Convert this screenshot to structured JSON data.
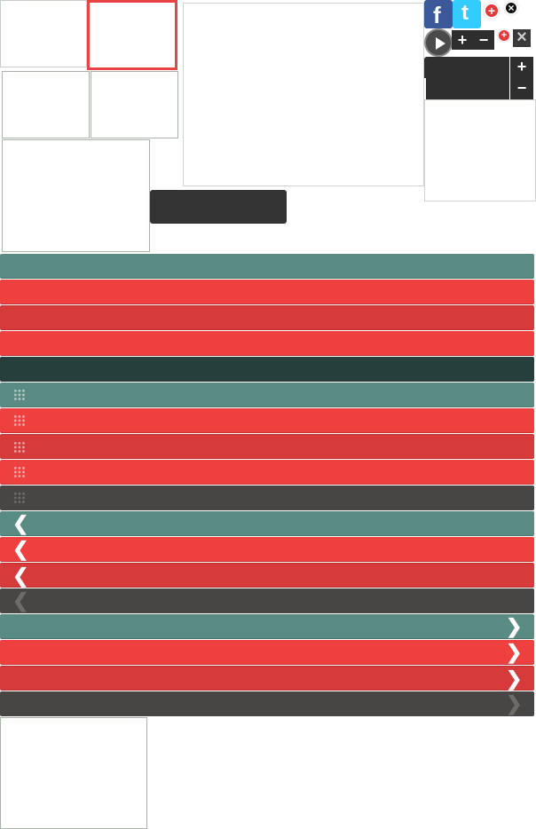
{
  "social": {
    "facebook_icon": "facebook-icon",
    "twitter_icon": "twitter-icon",
    "facebook_glyph": "f",
    "twitter_glyph": "t"
  },
  "controls": {
    "plus": "+",
    "minus": "−",
    "close": "×",
    "add": "+"
  },
  "colors": {
    "teal": "#5a8b82",
    "red": "#ef4040",
    "dark_red": "#d63a3a",
    "dark_green": "#263f3c",
    "dark_gray": "#474644",
    "selected_border": "#e84444"
  },
  "arrows": {
    "left": "❮",
    "right": "❯"
  }
}
